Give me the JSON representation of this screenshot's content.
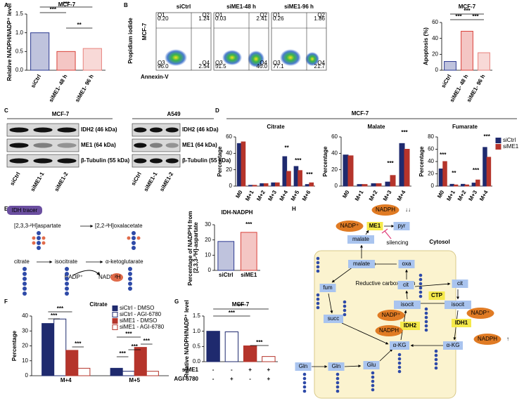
{
  "panel_labels": [
    "A",
    "B",
    "C",
    "D",
    "E",
    "F",
    "G",
    "H"
  ],
  "chart_data": [
    {
      "type": "bar",
      "title": "MCF-7",
      "ylabel": "Relative NADPH/NADP⁺ level",
      "categories": [
        "siCtrl",
        "siME1- 48 h",
        "siME1- 96 h"
      ],
      "values": [
        1.0,
        0.5,
        0.58
      ],
      "colors": [
        "#2b3990",
        "#d9423a",
        "#e8827c"
      ],
      "ylim": [
        0,
        1.5
      ],
      "yticks": [
        {
          "value": 0,
          "label": "0.0"
        },
        0.5,
        {
          "value": 1,
          "label": "1.0"
        },
        1.5
      ],
      "annotations": [
        "***",
        "***",
        "**"
      ]
    },
    {
      "type": "bar",
      "title": "MCF-7",
      "ylabel": "Apoptosis (%)",
      "categories": [
        "siCtrl",
        "siME1- 48 h",
        "siME1- 96 h"
      ],
      "values": [
        11,
        49,
        22
      ],
      "colors": [
        "#2b3990",
        "#d9423a",
        "#e8827c"
      ],
      "ylim": [
        0,
        60
      ],
      "yticks": [
        0,
        20,
        40,
        60
      ],
      "annotations": [
        "***",
        "***",
        "***"
      ]
    },
    {
      "type": "bar",
      "title": "Citrate",
      "ylabel": "Percentage",
      "categories": [
        "M0",
        "M+1",
        "M+2",
        "M+3",
        "M+4",
        "M+5",
        "M+6"
      ],
      "series": [
        {
          "name": "siCtrl",
          "color": "#1f2a6e",
          "values": [
            52,
            1,
            3,
            4,
            36,
            24,
            2
          ]
        },
        {
          "name": "siME1",
          "color": "#b5342b",
          "values": [
            54,
            1,
            3,
            4,
            18,
            19,
            4
          ]
        }
      ],
      "ylim": [
        0,
        60
      ],
      "yticks": [
        0,
        20,
        40,
        60
      ],
      "legend": false,
      "annotations": [
        "**",
        "***",
        "***"
      ]
    },
    {
      "type": "bar",
      "title": "Malate",
      "ylabel": "Percentage",
      "categories": [
        "M0",
        "M+1",
        "M+2",
        "M+3",
        "M+4"
      ],
      "series": [
        {
          "name": "siCtrl",
          "color": "#1f2a6e",
          "values": [
            38,
            2,
            3,
            5,
            52
          ]
        },
        {
          "name": "siME1",
          "color": "#b5342b",
          "values": [
            37,
            2,
            3,
            13,
            45
          ]
        }
      ],
      "ylim": [
        0,
        60
      ],
      "yticks": [
        0,
        20,
        40,
        60
      ],
      "legend": false,
      "annotations": [
        "***",
        "***"
      ]
    },
    {
      "type": "bar",
      "title": "Fumarate",
      "ylabel": "Percentage",
      "categories": [
        "M0",
        "M+1",
        "M+2",
        "M+3",
        "M+4"
      ],
      "series": [
        {
          "name": "siCtrl",
          "color": "#1f2a6e",
          "values": [
            28,
            3,
            3,
            5,
            63
          ]
        },
        {
          "name": "siME1",
          "color": "#b5342b",
          "values": [
            40,
            2,
            2,
            10,
            47
          ]
        }
      ],
      "ylim": [
        0,
        80
      ],
      "yticks": [
        0,
        20,
        40,
        60,
        80
      ],
      "legend": "right",
      "annotations": [
        "***",
        "**",
        "***",
        "***"
      ]
    },
    {
      "type": "bar",
      "title": "IDH-NADPH",
      "ylabel": "Percentage of NADP²H from [2,3,3-²H]-aspartate",
      "categories": [
        "siCtrl",
        "siME1"
      ],
      "values": [
        19,
        25
      ],
      "colors": [
        "#2b3990",
        "#d9423a"
      ],
      "ylim": [
        0,
        30
      ],
      "yticks": [
        0,
        10,
        20,
        30
      ],
      "annotations": [
        "***"
      ]
    },
    {
      "type": "bar",
      "title": "Citrate",
      "ylabel": "Percentage",
      "categories": [
        "M+4",
        "M+5"
      ],
      "series": [
        {
          "name": "siCtrl - DMSO",
          "color": "#1f2a6e",
          "hollow": false,
          "values": [
            35,
            5
          ]
        },
        {
          "name": "siCtrl - AGI-6780",
          "color": "#1f2a6e",
          "hollow": true,
          "values": [
            38,
            3
          ]
        },
        {
          "name": "siME1 - DMSO",
          "color": "#b5342b",
          "hollow": false,
          "values": [
            17,
            19
          ]
        },
        {
          "name": "siME1 - AGI-6780",
          "color": "#b5342b",
          "hollow": true,
          "values": [
            5,
            3
          ]
        }
      ],
      "ylim": [
        0,
        40
      ],
      "yticks": [
        0,
        10,
        20,
        30,
        40
      ],
      "legend": "upper right",
      "annotations": [
        "***",
        "***",
        "***",
        "***",
        "***",
        "***",
        "***"
      ]
    },
    {
      "type": "bar",
      "title": "MCF-7",
      "ylabel": "Relative NADPH/NADP⁺ level",
      "values": [
        1.0,
        0.98,
        0.52,
        0.17
      ],
      "colors": [
        "#1f2a6e",
        "#1f2a6e",
        "#b5342b",
        "#b5342b"
      ],
      "hollow": [
        false,
        true,
        false,
        true
      ],
      "ylim": [
        0,
        1.5
      ],
      "yticks": [
        {
          "value": 0,
          "label": "0.0"
        },
        0.5,
        {
          "value": 1,
          "label": "1.0"
        },
        1.5
      ],
      "annotations": [
        "***",
        "***",
        "***"
      ],
      "conditions": [
        {
          "label": "siME1",
          "signs": [
            "-",
            "-",
            "+",
            "+"
          ]
        },
        {
          "label": "AGI-6780",
          "signs": [
            "-",
            "+",
            "-",
            "+"
          ]
        }
      ]
    }
  ],
  "flow": {
    "row_label": "MCF-7",
    "ylabel": "Propidium iodide",
    "xlabel": "Annexin-V",
    "quadrant_names": [
      "Q1",
      "Q2",
      "Q3",
      "Q4"
    ],
    "plots": [
      {
        "title": "siCtrl",
        "quadrants": [
          "0.20",
          "1.24",
          "96.0",
          "2.54"
        ]
      },
      {
        "title": "siME1-48 h",
        "quadrants": [
          "0.03",
          "2.41",
          "51.5",
          "46.0"
        ]
      },
      {
        "title": "siME1-96 h",
        "quadrants": [
          "0.26",
          "1.86",
          "77.1",
          "21.7"
        ]
      }
    ]
  },
  "blot": {
    "cell_lines": [
      "MCF-7",
      "A549"
    ],
    "proteins": [
      "IDH2 (46 kDa)",
      "ME1 (64 kDa)",
      "β-Tubulin (55 kDa)"
    ],
    "lanes": [
      "siCtrl",
      "siME1-1",
      "siME1-2"
    ]
  },
  "panel_d_title": "MCF-7",
  "tracer": {
    "badge": "IDH tracer",
    "texts": [
      "[2,3,3-²H]aspartate",
      "[2,2-²H]oxalacetate",
      "citrate",
      "isocitrate",
      "α-ketoglutarate",
      "NADP⁺",
      "NADP-",
      "²H"
    ]
  },
  "pathway": {
    "nodes": [
      "NADPH",
      "↓↓",
      "NADP⁺",
      "ME1",
      "pyr",
      "malate",
      "silencing",
      "Cytosol",
      "malate",
      "oxa",
      "Reductive carboxylation",
      "fum",
      "cit",
      "CTP",
      "cit",
      "isocit",
      "isocit",
      "NADP⁺",
      "IDH2",
      "NADPH",
      "NADP⁺",
      "IDH1",
      "NADPH",
      "↑",
      "succ",
      "α-KG",
      "α-KG",
      "Gln",
      "Gln",
      "Glu"
    ]
  }
}
